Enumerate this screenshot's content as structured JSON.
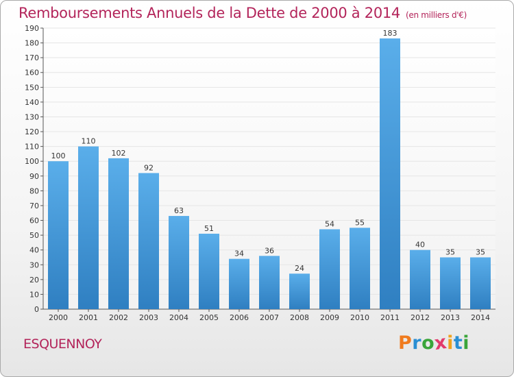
{
  "header": {
    "title": "Remboursements Annuels de la Dette de 2000 à 2014",
    "unit": "(en milliers d'€)"
  },
  "footer": {
    "commune": "ESQUENNOY",
    "brand_letters": [
      "P",
      "r",
      "o",
      "x",
      "i",
      "t",
      "i"
    ],
    "brand_colors": [
      "#f07b1e",
      "#2a8fd3",
      "#3aa53a",
      "#e23a6c",
      "#f0a21e",
      "#2a8fd3",
      "#3aa53a"
    ]
  },
  "colors": {
    "title": "#b3245a",
    "bar_top": "#5aaeea",
    "bar_bottom": "#2f7fc1",
    "grid": "#e5e5e5"
  },
  "chart_data": {
    "type": "bar",
    "title": "Remboursements Annuels de la Dette de 2000 à 2014",
    "subtitle": "(en milliers d'€)",
    "xlabel": "",
    "ylabel": "",
    "categories": [
      "2000",
      "2001",
      "2002",
      "2003",
      "2004",
      "2005",
      "2006",
      "2007",
      "2008",
      "2009",
      "2010",
      "2011",
      "2012",
      "2013",
      "2014"
    ],
    "values": [
      100,
      110,
      102,
      92,
      63,
      51,
      34,
      36,
      24,
      54,
      55,
      183,
      40,
      35,
      35
    ],
    "ylim": [
      0,
      190
    ],
    "ytick_step": 10,
    "grid": true,
    "legend": "none"
  }
}
